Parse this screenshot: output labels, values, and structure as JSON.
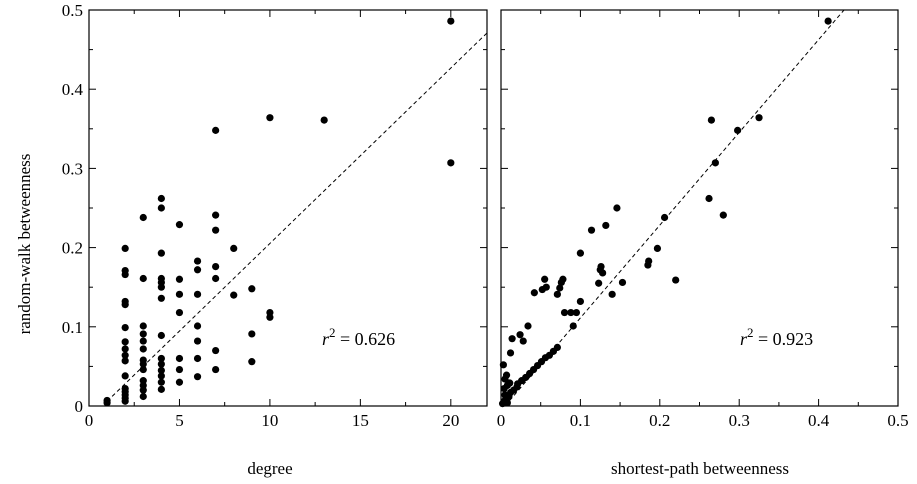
{
  "chart_data": [
    {
      "type": "scatter",
      "xlabel": "degree",
      "ylabel": "random-walk betweenness",
      "xlim": [
        0,
        22
      ],
      "ylim": [
        0,
        0.5
      ],
      "xticks": [
        0,
        5,
        10,
        15,
        20
      ],
      "yticks": [
        0,
        0.1,
        0.2,
        0.3,
        0.4,
        0.5
      ],
      "xtick_labels": [
        "0",
        "5",
        "10",
        "15",
        "20"
      ],
      "ytick_labels": [
        "0",
        "0.1",
        "0.2",
        "0.3",
        "0.4",
        "0.5"
      ],
      "annotation": {
        "symbol": "r",
        "superscript": "2",
        "text": " = 0.626"
      },
      "fit_line": {
        "style": "dashed",
        "points": [
          [
            1,
            0.006
          ],
          [
            22,
            0.471
          ]
        ]
      },
      "points": [
        [
          1,
          0.004
        ],
        [
          1,
          0.007
        ],
        [
          2,
          0.006
        ],
        [
          2,
          0.01
        ],
        [
          2,
          0.014
        ],
        [
          2,
          0.018
        ],
        [
          2,
          0.022
        ],
        [
          2,
          0.038
        ],
        [
          2,
          0.057
        ],
        [
          2,
          0.064
        ],
        [
          2,
          0.072
        ],
        [
          2,
          0.081
        ],
        [
          2,
          0.099
        ],
        [
          2,
          0.128
        ],
        [
          2,
          0.132
        ],
        [
          2,
          0.166
        ],
        [
          2,
          0.171
        ],
        [
          2,
          0.199
        ],
        [
          3,
          0.012
        ],
        [
          3,
          0.02
        ],
        [
          3,
          0.026
        ],
        [
          3,
          0.032
        ],
        [
          3,
          0.046
        ],
        [
          3,
          0.053
        ],
        [
          3,
          0.058
        ],
        [
          3,
          0.072
        ],
        [
          3,
          0.082
        ],
        [
          3,
          0.091
        ],
        [
          3,
          0.101
        ],
        [
          3,
          0.161
        ],
        [
          3,
          0.238
        ],
        [
          4,
          0.021
        ],
        [
          4,
          0.03
        ],
        [
          4,
          0.038
        ],
        [
          4,
          0.045
        ],
        [
          4,
          0.053
        ],
        [
          4,
          0.06
        ],
        [
          4,
          0.089
        ],
        [
          4,
          0.136
        ],
        [
          4,
          0.15
        ],
        [
          4,
          0.156
        ],
        [
          4,
          0.161
        ],
        [
          4,
          0.193
        ],
        [
          4,
          0.25
        ],
        [
          4,
          0.262
        ],
        [
          5,
          0.03
        ],
        [
          5,
          0.046
        ],
        [
          5,
          0.06
        ],
        [
          5,
          0.118
        ],
        [
          5,
          0.141
        ],
        [
          5,
          0.16
        ],
        [
          5,
          0.229
        ],
        [
          6,
          0.037
        ],
        [
          6,
          0.06
        ],
        [
          6,
          0.082
        ],
        [
          6,
          0.101
        ],
        [
          6,
          0.141
        ],
        [
          6,
          0.172
        ],
        [
          6,
          0.183
        ],
        [
          7,
          0.046
        ],
        [
          7,
          0.07
        ],
        [
          7,
          0.161
        ],
        [
          7,
          0.176
        ],
        [
          7,
          0.222
        ],
        [
          7,
          0.241
        ],
        [
          7,
          0.348
        ],
        [
          8,
          0.14
        ],
        [
          8,
          0.199
        ],
        [
          9,
          0.056
        ],
        [
          9,
          0.091
        ],
        [
          9,
          0.148
        ],
        [
          10,
          0.112
        ],
        [
          10,
          0.118
        ],
        [
          10,
          0.364
        ],
        [
          13,
          0.361
        ],
        [
          20,
          0.307
        ],
        [
          20,
          0.486
        ]
      ]
    },
    {
      "type": "scatter",
      "xlabel": "shortest-path betweenness",
      "ylabel": "",
      "xlim": [
        0,
        0.5
      ],
      "ylim": [
        0,
        0.5
      ],
      "xticks": [
        0,
        0.1,
        0.2,
        0.3,
        0.4,
        0.5
      ],
      "yticks": [
        0,
        0.1,
        0.2,
        0.3,
        0.4,
        0.5
      ],
      "xtick_labels": [
        "0",
        "0.1",
        "0.2",
        "0.3",
        "0.4",
        "0.5"
      ],
      "ytick_labels": [],
      "annotation": {
        "symbol": "r",
        "superscript": "2",
        "text": " = 0.923"
      },
      "fit_line": {
        "style": "dashed",
        "points": [
          [
            0.005,
            0
          ],
          [
            0.432,
            0.5
          ]
        ]
      },
      "points": [
        [
          0.002,
          0.003
        ],
        [
          0.004,
          0.006
        ],
        [
          0.006,
          0.009
        ],
        [
          0.008,
          0.004
        ],
        [
          0.005,
          0.014
        ],
        [
          0.01,
          0.012
        ],
        [
          0.012,
          0.017
        ],
        [
          0.004,
          0.022
        ],
        [
          0.008,
          0.026
        ],
        [
          0.011,
          0.029
        ],
        [
          0.016,
          0.02
        ],
        [
          0.02,
          0.024
        ],
        [
          0.003,
          0.052
        ],
        [
          0.005,
          0.034
        ],
        [
          0.007,
          0.039
        ],
        [
          0.021,
          0.028
        ],
        [
          0.026,
          0.032
        ],
        [
          0.031,
          0.036
        ],
        [
          0.036,
          0.041
        ],
        [
          0.041,
          0.046
        ],
        [
          0.046,
          0.051
        ],
        [
          0.051,
          0.056
        ],
        [
          0.056,
          0.061
        ],
        [
          0.061,
          0.064
        ],
        [
          0.066,
          0.069
        ],
        [
          0.071,
          0.074
        ],
        [
          0.012,
          0.067
        ],
        [
          0.014,
          0.085
        ],
        [
          0.024,
          0.09
        ],
        [
          0.028,
          0.082
        ],
        [
          0.034,
          0.101
        ],
        [
          0.042,
          0.143
        ],
        [
          0.052,
          0.147
        ],
        [
          0.055,
          0.16
        ],
        [
          0.057,
          0.15
        ],
        [
          0.071,
          0.141
        ],
        [
          0.074,
          0.149
        ],
        [
          0.076,
          0.156
        ],
        [
          0.078,
          0.16
        ],
        [
          0.08,
          0.118
        ],
        [
          0.088,
          0.118
        ],
        [
          0.091,
          0.101
        ],
        [
          0.095,
          0.118
        ],
        [
          0.1,
          0.132
        ],
        [
          0.1,
          0.193
        ],
        [
          0.114,
          0.222
        ],
        [
          0.123,
          0.155
        ],
        [
          0.125,
          0.172
        ],
        [
          0.126,
          0.176
        ],
        [
          0.128,
          0.168
        ],
        [
          0.132,
          0.228
        ],
        [
          0.14,
          0.141
        ],
        [
          0.146,
          0.25
        ],
        [
          0.153,
          0.156
        ],
        [
          0.185,
          0.178
        ],
        [
          0.186,
          0.183
        ],
        [
          0.197,
          0.199
        ],
        [
          0.206,
          0.238
        ],
        [
          0.22,
          0.159
        ],
        [
          0.262,
          0.262
        ],
        [
          0.265,
          0.361
        ],
        [
          0.27,
          0.307
        ],
        [
          0.28,
          0.241
        ],
        [
          0.298,
          0.348
        ],
        [
          0.325,
          0.364
        ],
        [
          0.412,
          0.486
        ]
      ]
    }
  ]
}
